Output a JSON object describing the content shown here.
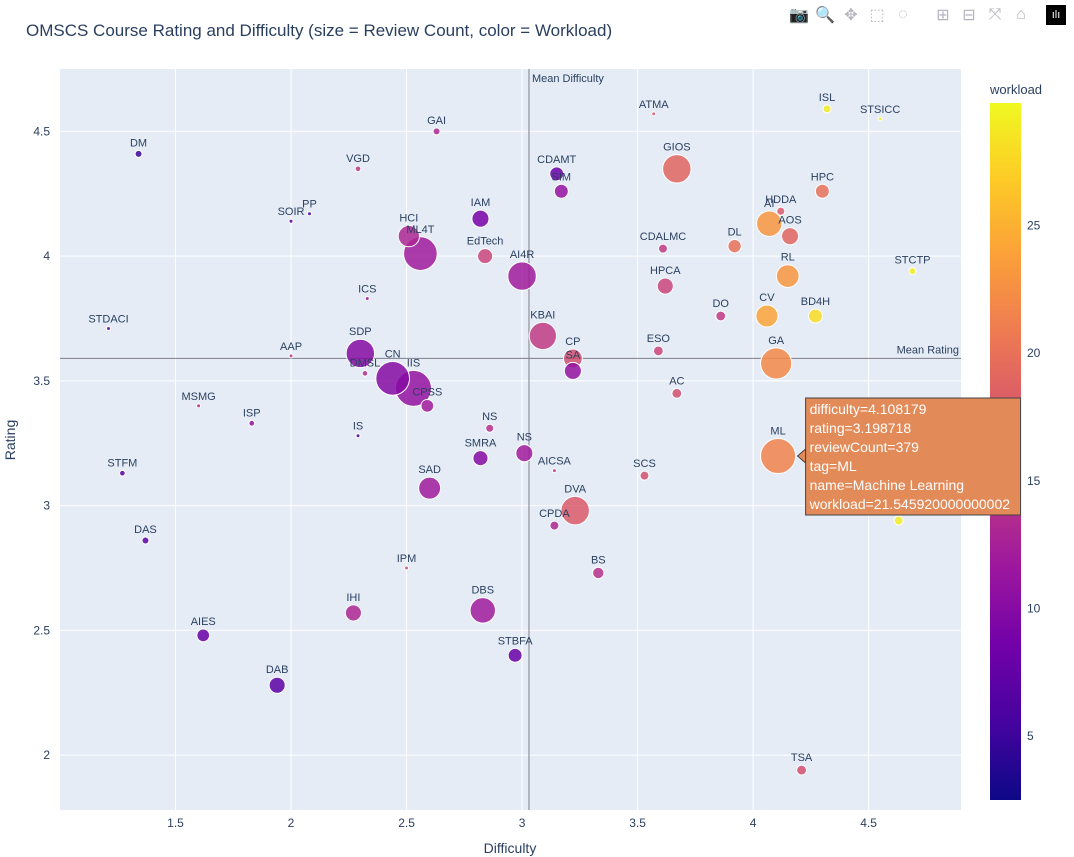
{
  "toolbar": {
    "buttons": [
      {
        "name": "camera-icon",
        "glyph": "📷"
      },
      {
        "name": "zoom-icon",
        "glyph": "🔍"
      },
      {
        "name": "pan-icon",
        "glyph": "✥"
      },
      {
        "name": "box-select-icon",
        "glyph": "⬚"
      },
      {
        "name": "lasso-select-icon",
        "glyph": "◌"
      },
      {
        "name": "zoom-in-icon",
        "glyph": "⊞"
      },
      {
        "name": "zoom-out-icon",
        "glyph": "⊟"
      },
      {
        "name": "autoscale-icon",
        "glyph": "⤧"
      },
      {
        "name": "home-icon",
        "glyph": "⌂"
      }
    ],
    "logo": "ılı"
  },
  "chart_data": {
    "type": "scatter",
    "title": "OMSCS Course Rating and Difficulty (size = Review Count, color = Workload)",
    "xlabel": "Difficulty",
    "ylabel": "Rating",
    "xlim": [
      1.0,
      4.9
    ],
    "ylim": [
      1.78,
      4.75
    ],
    "xticks": [
      1.5,
      2,
      2.5,
      3,
      3.5,
      4,
      4.5
    ],
    "xtick_labels": [
      "1.5",
      "2",
      "2.5",
      "3",
      "3.5",
      "4",
      "4.5"
    ],
    "yticks": [
      2,
      2.5,
      3,
      3.5,
      4,
      4.5
    ],
    "ytick_labels": [
      "2",
      "2.5",
      "3",
      "3.5",
      "4",
      "4.5"
    ],
    "grid": true,
    "colorbar": {
      "title": "workload",
      "range": [
        2.5,
        29.8
      ],
      "ticks": [
        5,
        10,
        15,
        20,
        25
      ],
      "tick_labels": [
        "5",
        "10",
        "15",
        "20",
        "25"
      ],
      "colorscale": [
        "#0d0887",
        "#46039f",
        "#7201a8",
        "#9c179e",
        "#bd3786",
        "#d8576b",
        "#ed7953",
        "#fb9f3a",
        "#fdca26",
        "#f0f921"
      ]
    },
    "reference_lines": [
      {
        "axis": "x",
        "value": 3.03,
        "label": "Mean Difficulty"
      },
      {
        "axis": "y",
        "value": 3.59,
        "label": "Mean Rating"
      }
    ],
    "points": [
      {
        "tag": "DM",
        "x": 1.34,
        "y": 4.41,
        "size": 15,
        "workload": 5
      },
      {
        "tag": "GAI",
        "x": 2.63,
        "y": 4.5,
        "size": 15,
        "workload": 13
      },
      {
        "tag": "ATMA",
        "x": 3.57,
        "y": 4.57,
        "size": 5,
        "workload": 18
      },
      {
        "tag": "ISL",
        "x": 4.32,
        "y": 4.59,
        "size": 20,
        "workload": 29
      },
      {
        "tag": "STSICC",
        "x": 4.55,
        "y": 4.55,
        "size": 5,
        "workload": 29
      },
      {
        "tag": "VGD",
        "x": 2.29,
        "y": 4.35,
        "size": 10,
        "workload": 15
      },
      {
        "tag": "CDAMT",
        "x": 3.15,
        "y": 4.33,
        "size": 60,
        "workload": 8
      },
      {
        "tag": "GIOS",
        "x": 3.67,
        "y": 4.35,
        "size": 250,
        "workload": 19
      },
      {
        "tag": "SIM",
        "x": 3.17,
        "y": 4.26,
        "size": 60,
        "workload": 11
      },
      {
        "tag": "HPC",
        "x": 4.3,
        "y": 4.26,
        "size": 60,
        "workload": 20
      },
      {
        "tag": "PP",
        "x": 2.08,
        "y": 4.17,
        "size": 5,
        "workload": 6
      },
      {
        "tag": "SOIR",
        "x": 2.0,
        "y": 4.14,
        "size": 5,
        "workload": 7
      },
      {
        "tag": "HDDA",
        "x": 4.12,
        "y": 4.18,
        "size": 20,
        "workload": 18
      },
      {
        "tag": "IAM",
        "x": 2.82,
        "y": 4.15,
        "size": 90,
        "workload": 9
      },
      {
        "tag": "AI",
        "x": 4.07,
        "y": 4.13,
        "size": 200,
        "workload": 23
      },
      {
        "tag": "HCI",
        "x": 2.51,
        "y": 4.08,
        "size": 140,
        "workload": 13
      },
      {
        "tag": "AOS",
        "x": 4.16,
        "y": 4.08,
        "size": 90,
        "workload": 19
      },
      {
        "tag": "ML4T",
        "x": 2.56,
        "y": 4.01,
        "size": 350,
        "workload": 12
      },
      {
        "tag": "EdTech",
        "x": 2.84,
        "y": 4.0,
        "size": 70,
        "workload": 16
      },
      {
        "tag": "CDALMC",
        "x": 3.61,
        "y": 4.03,
        "size": 25,
        "workload": 15
      },
      {
        "tag": "DL",
        "x": 3.92,
        "y": 4.04,
        "size": 55,
        "workload": 20
      },
      {
        "tag": "AI4R",
        "x": 3.0,
        "y": 3.92,
        "size": 250,
        "workload": 12
      },
      {
        "tag": "RL",
        "x": 4.15,
        "y": 3.92,
        "size": 160,
        "workload": 23
      },
      {
        "tag": "STCTP",
        "x": 4.69,
        "y": 3.94,
        "size": 15,
        "workload": 29
      },
      {
        "tag": "HPCA",
        "x": 3.62,
        "y": 3.88,
        "size": 80,
        "workload": 16
      },
      {
        "tag": "ICS",
        "x": 2.33,
        "y": 3.83,
        "size": 5,
        "workload": 12
      },
      {
        "tag": "DO",
        "x": 3.86,
        "y": 3.76,
        "size": 30,
        "workload": 15
      },
      {
        "tag": "CV",
        "x": 4.06,
        "y": 3.76,
        "size": 150,
        "workload": 24
      },
      {
        "tag": "BD4H",
        "x": 4.27,
        "y": 3.76,
        "size": 60,
        "workload": 28
      },
      {
        "tag": "STDACI",
        "x": 1.21,
        "y": 3.71,
        "size": 5,
        "workload": 8
      },
      {
        "tag": "KBAI",
        "x": 3.09,
        "y": 3.68,
        "size": 230,
        "workload": 15
      },
      {
        "tag": "ESO",
        "x": 3.59,
        "y": 3.62,
        "size": 30,
        "workload": 16
      },
      {
        "tag": "SDP",
        "x": 2.3,
        "y": 3.61,
        "size": 250,
        "workload": 10
      },
      {
        "tag": "AAP",
        "x": 2.0,
        "y": 3.6,
        "size": 5,
        "workload": 15
      },
      {
        "tag": "CP",
        "x": 3.22,
        "y": 3.59,
        "size": 110,
        "workload": 17
      },
      {
        "tag": "GA",
        "x": 4.1,
        "y": 3.57,
        "size": 300,
        "workload": 22
      },
      {
        "tag": "SA",
        "x": 3.22,
        "y": 3.54,
        "size": 90,
        "workload": 11
      },
      {
        "tag": "DMSL",
        "x": 2.32,
        "y": 3.53,
        "size": 10,
        "workload": 14
      },
      {
        "tag": "CN",
        "x": 2.44,
        "y": 3.51,
        "size": 350,
        "workload": 10
      },
      {
        "tag": "IIS",
        "x": 2.53,
        "y": 3.47,
        "size": 400,
        "workload": 11
      },
      {
        "tag": "CPSS",
        "x": 2.59,
        "y": 3.4,
        "size": 50,
        "workload": 12
      },
      {
        "tag": "AC",
        "x": 3.67,
        "y": 3.45,
        "size": 30,
        "workload": 17
      },
      {
        "tag": "MSMG",
        "x": 1.6,
        "y": 3.4,
        "size": 5,
        "workload": 14
      },
      {
        "tag": "ISP",
        "x": 1.83,
        "y": 3.33,
        "size": 10,
        "workload": 11
      },
      {
        "tag": "NS",
        "x": 2.86,
        "y": 3.31,
        "size": 20,
        "workload": 14
      },
      {
        "tag": "IS",
        "x": 2.29,
        "y": 3.28,
        "size": 5,
        "workload": 6
      },
      {
        "tag": "SMRA",
        "x": 2.82,
        "y": 3.19,
        "size": 70,
        "workload": 10
      },
      {
        "tag": "NS",
        "x": 3.01,
        "y": 3.21,
        "size": 90,
        "workload": 12
      },
      {
        "tag": "ML",
        "x": 4.108179,
        "y": 3.198718,
        "size": 379,
        "workload": 21.545920000000002
      },
      {
        "tag": "AICSA",
        "x": 3.14,
        "y": 3.14,
        "size": 5,
        "workload": 15
      },
      {
        "tag": "STFM",
        "x": 1.27,
        "y": 3.13,
        "size": 10,
        "workload": 7
      },
      {
        "tag": "SCS",
        "x": 3.53,
        "y": 3.12,
        "size": 25,
        "workload": 17
      },
      {
        "tag": "SAD",
        "x": 2.6,
        "y": 3.07,
        "size": 150,
        "workload": 12
      },
      {
        "tag": "DVA",
        "x": 3.23,
        "y": 2.98,
        "size": 250,
        "workload": 18
      },
      {
        "tag": "CPDA",
        "x": 3.14,
        "y": 2.92,
        "size": 25,
        "workload": 13
      },
      {
        "tag": "",
        "x": 4.63,
        "y": 2.94,
        "size": 25,
        "workload": 29
      },
      {
        "tag": "DAS",
        "x": 1.37,
        "y": 2.86,
        "size": 15,
        "workload": 7
      },
      {
        "tag": "IPM",
        "x": 2.5,
        "y": 2.75,
        "size": 5,
        "workload": 17
      },
      {
        "tag": "BS",
        "x": 3.33,
        "y": 2.73,
        "size": 40,
        "workload": 14
      },
      {
        "tag": "DBS",
        "x": 2.83,
        "y": 2.58,
        "size": 200,
        "workload": 12
      },
      {
        "tag": "IHI",
        "x": 2.27,
        "y": 2.57,
        "size": 80,
        "workload": 13
      },
      {
        "tag": "AIES",
        "x": 1.62,
        "y": 2.48,
        "size": 50,
        "workload": 8
      },
      {
        "tag": "STBFA",
        "x": 2.97,
        "y": 2.4,
        "size": 60,
        "workload": 8
      },
      {
        "tag": "DAB",
        "x": 1.94,
        "y": 2.28,
        "size": 80,
        "workload": 7
      },
      {
        "tag": "TSA",
        "x": 4.21,
        "y": 1.94,
        "size": 30,
        "workload": 17
      }
    ],
    "tooltip": {
      "lines": [
        "difficulty=4.108179",
        "rating=3.198718",
        "reviewCount=379",
        "tag=ML",
        "name=Machine Learning",
        "workload=21.545920000000002"
      ],
      "color": "#e28a58"
    }
  }
}
